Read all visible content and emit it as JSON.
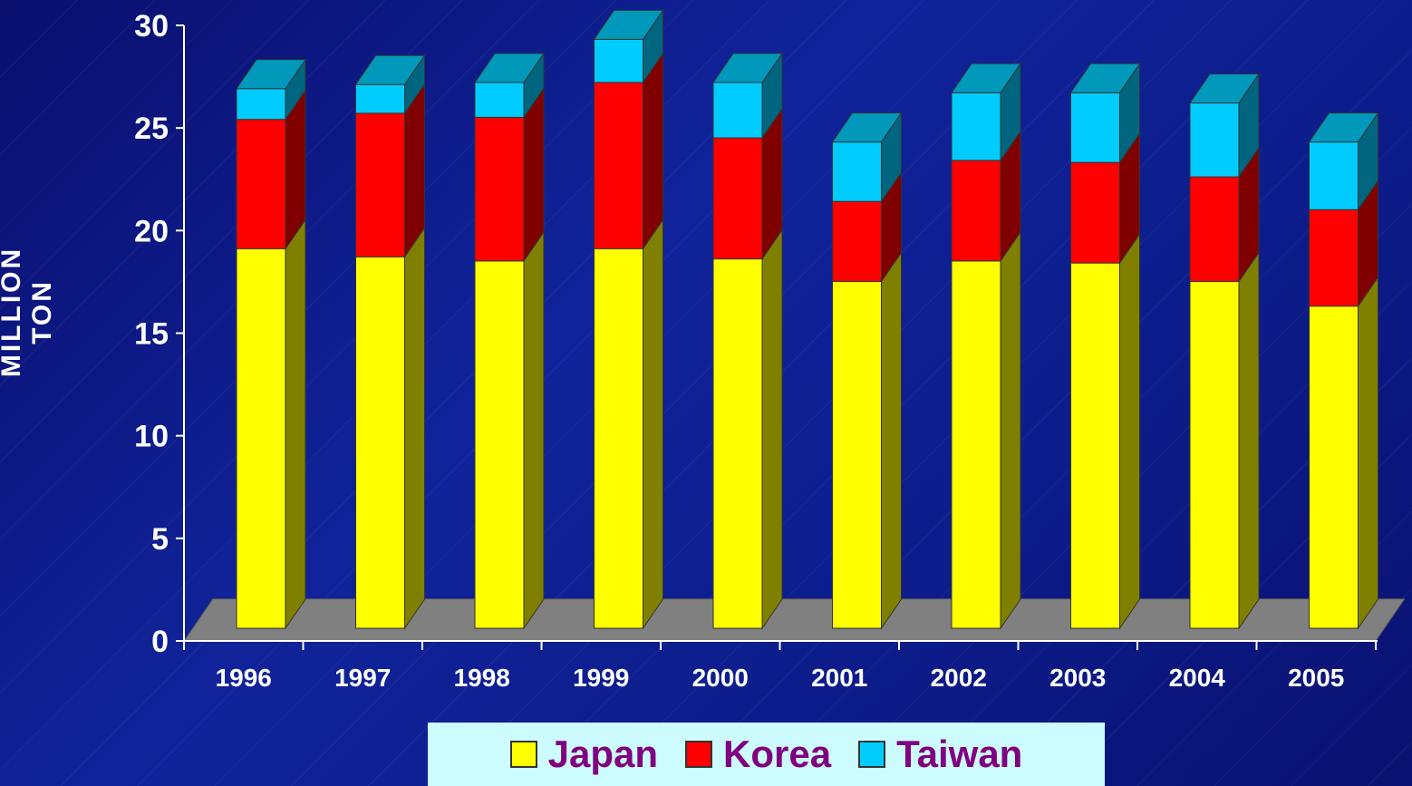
{
  "chart_data": {
    "type": "bar",
    "stacked": true,
    "three_d": true,
    "ylabel": "MILLION  TON",
    "xlabel": "",
    "ylim": [
      0,
      30
    ],
    "yticks": [
      0,
      5,
      10,
      15,
      20,
      25,
      30
    ],
    "categories": [
      "1996",
      "1997",
      "1998",
      "1999",
      "2000",
      "2001",
      "2002",
      "2003",
      "2004",
      "2005"
    ],
    "series": [
      {
        "name": "Japan",
        "color": "#ffff00",
        "side_color": "#808000",
        "values": [
          18.5,
          18.1,
          17.9,
          18.5,
          18.0,
          16.9,
          17.9,
          17.8,
          16.9,
          15.7
        ]
      },
      {
        "name": "Korea",
        "color": "#ff0000",
        "side_color": "#800000",
        "values": [
          6.3,
          7.0,
          7.0,
          8.1,
          5.9,
          3.9,
          4.9,
          4.9,
          5.1,
          4.7
        ]
      },
      {
        "name": "Taiwan",
        "color": "#00ccff",
        "side_color": "#006680",
        "values": [
          1.5,
          1.4,
          1.7,
          2.1,
          2.7,
          2.9,
          3.3,
          3.4,
          3.6,
          3.3
        ]
      }
    ],
    "floor_color": "#808080",
    "legend_position": "bottom-center",
    "grid": false
  }
}
